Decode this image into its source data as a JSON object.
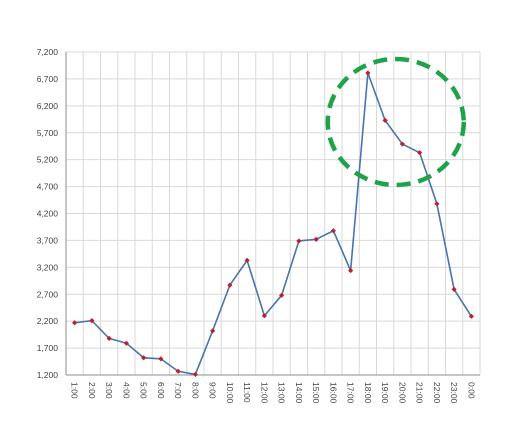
{
  "chart_data": {
    "type": "line",
    "title": "",
    "xlabel": "",
    "ylabel": "",
    "categories": [
      "1:00",
      "2:00",
      "3:00",
      "4:00",
      "5:00",
      "6:00",
      "7:00",
      "8:00",
      "9:00",
      "10:00",
      "11:00",
      "12:00",
      "13:00",
      "14:00",
      "15:00",
      "16:00",
      "17:00",
      "18:00",
      "19:00",
      "20:00",
      "21:00",
      "22:00",
      "23:00",
      "0:00"
    ],
    "series": [
      {
        "values": [
          2170,
          2210,
          1880,
          1790,
          1520,
          1500,
          1270,
          1210,
          2020,
          2870,
          3330,
          2300,
          2680,
          3690,
          3720,
          3880,
          3140,
          6810,
          5930,
          5490,
          5330,
          4380,
          2790,
          2290
        ],
        "line_color": "#4a73ad",
        "marker_color": "#c0202a"
      }
    ],
    "y_ticks": [
      "1,200",
      "1,700",
      "2,200",
      "2,700",
      "3,200",
      "3,700",
      "4,200",
      "4,700",
      "5,200",
      "5,700",
      "6,200",
      "6,700",
      "7,200"
    ],
    "ylim": [
      1200,
      7200
    ],
    "grid": true,
    "annotation": {
      "shape": "dashed-ellipse",
      "color": "#1ea24a",
      "highlights": [
        "18:00",
        "19:00",
        "20:00",
        "21:00"
      ]
    }
  }
}
